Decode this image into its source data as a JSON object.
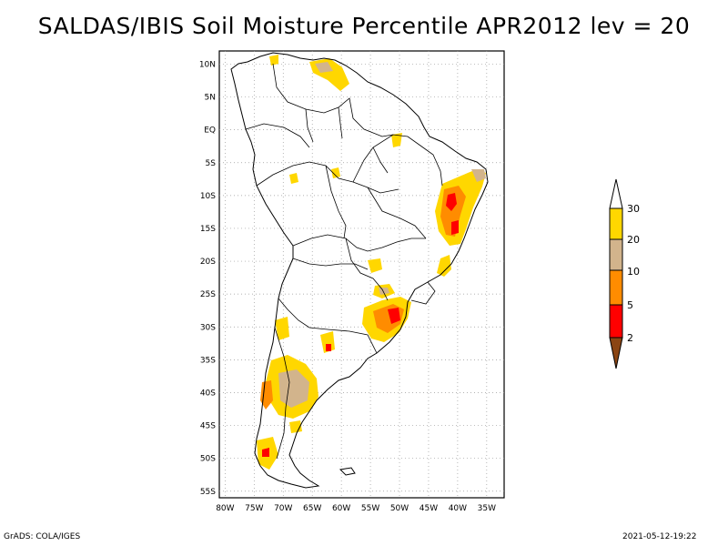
{
  "title": "SALDAS/IBIS Soil Moisture Percentile APR2012 lev = 20",
  "map": {
    "region": "South America",
    "lon_range": [
      -81,
      -32
    ],
    "lat_range": [
      -56,
      12
    ],
    "lat_ticks": [
      "10N",
      "5N",
      "EQ",
      "5S",
      "10S",
      "15S",
      "20S",
      "25S",
      "30S",
      "35S",
      "40S",
      "45S",
      "50S",
      "55S"
    ],
    "lat_values": [
      10,
      5,
      0,
      -5,
      -10,
      -15,
      -20,
      -25,
      -30,
      -35,
      -40,
      -45,
      -50,
      -55
    ],
    "lon_ticks": [
      "80W",
      "75W",
      "70W",
      "65W",
      "60W",
      "55W",
      "50W",
      "45W",
      "40W",
      "35W"
    ],
    "lon_values": [
      -80,
      -75,
      -70,
      -65,
      -60,
      -55,
      -50,
      -45,
      -40,
      -35
    ],
    "grid": "dotted"
  },
  "legend": {
    "labels": [
      "2",
      "5",
      "10",
      "20",
      "30"
    ],
    "colors": {
      "below_2": "#8b4513",
      "2_5": "#ff0000",
      "5_10": "#ff8c00",
      "10_20": "#d2b48c",
      "20_30": "#ffd700",
      "above_30": "#ffffff"
    }
  },
  "footer": {
    "left": "GrADS: COLA/IGES",
    "right": "2021-05-12-19:22"
  }
}
